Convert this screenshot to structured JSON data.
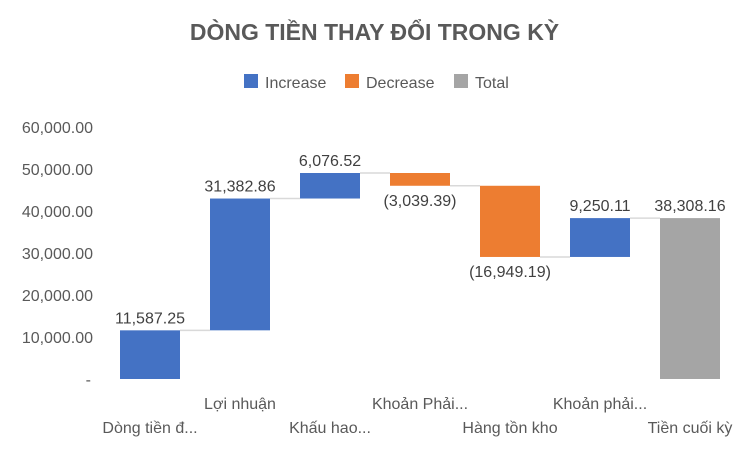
{
  "chart_data": {
    "type": "waterfall",
    "title": "DÒNG TIỀN THAY ĐỔI TRONG KỲ",
    "legend": {
      "placement": "top",
      "entries": [
        {
          "key": "increase",
          "label": "Increase",
          "color": "#4472C4"
        },
        {
          "key": "decrease",
          "label": "Decrease",
          "color": "#ED7D31"
        },
        {
          "key": "total",
          "label": "Total",
          "color": "#A5A5A5"
        }
      ]
    },
    "ylim": [
      0,
      60000
    ],
    "y_ticks": [
      {
        "value": 60000,
        "label": "60,000.00"
      },
      {
        "value": 50000,
        "label": "50,000.00"
      },
      {
        "value": 40000,
        "label": "40,000.00"
      },
      {
        "value": 30000,
        "label": "30,000.00"
      },
      {
        "value": 20000,
        "label": "20,000.00"
      },
      {
        "value": 10000,
        "label": "10,000.00"
      },
      {
        "value": 0,
        "label": "-"
      }
    ],
    "grid": false,
    "categories": [
      {
        "label": "Dòng tiền đ...",
        "kind": "increase",
        "start": 0,
        "end": 11587.25,
        "value_label": "11,587.25"
      },
      {
        "label": "Lợi nhuận",
        "kind": "increase",
        "start": 11587.25,
        "end": 42970.11,
        "value_label": "31,382.86"
      },
      {
        "label": "Khấu hao...",
        "kind": "increase",
        "start": 42970.11,
        "end": 49046.63,
        "value_label": "6,076.52"
      },
      {
        "label": "Khoản Phải...",
        "kind": "decrease",
        "start": 49046.63,
        "end": 46007.24,
        "value_label": "(3,039.39)"
      },
      {
        "label": "Hàng tồn kho",
        "kind": "decrease",
        "start": 46007.24,
        "end": 29058.05,
        "value_label": "(16,949.19)"
      },
      {
        "label": "Khoản phải...",
        "kind": "increase",
        "start": 29058.05,
        "end": 38308.16,
        "value_label": "9,250.11"
      },
      {
        "label": "Tiền cuối kỳ",
        "kind": "total",
        "start": 0,
        "end": 38308.16,
        "value_label": "38,308.16"
      }
    ]
  }
}
